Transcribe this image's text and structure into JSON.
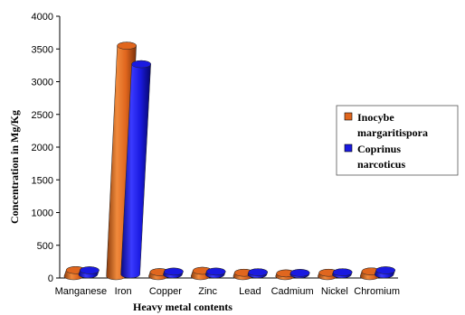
{
  "chart_data": {
    "type": "bar",
    "subtype": "3d-cylinder-clustered",
    "categories": [
      "Manganese",
      "Iron",
      "Copper",
      "Zinc",
      "Lead",
      "Cadmium",
      "Nickel",
      "Chromium"
    ],
    "series": [
      {
        "name": "Inocybe margaritispora",
        "color": "#e0661e",
        "values": [
          120,
          3550,
          90,
          110,
          80,
          70,
          80,
          100
        ]
      },
      {
        "name": "Coprinus narcoticus",
        "color": "#1a1ae0",
        "values": [
          90,
          3240,
          70,
          70,
          60,
          50,
          60,
          90
        ]
      }
    ],
    "xlabel": "Heavy metal contents",
    "ylabel": "Concentration in Mg/Kg",
    "yticks": [
      0,
      500,
      1000,
      1500,
      2000,
      2500,
      3000,
      3500,
      4000
    ],
    "ylim": [
      0,
      4000
    ],
    "grid": false,
    "legend": {
      "position": "right",
      "entries": [
        {
          "lines": [
            "Inocybe",
            "margaritispora"
          ]
        },
        {
          "lines": [
            "Coprinus",
            "narcoticus"
          ]
        }
      ]
    }
  }
}
